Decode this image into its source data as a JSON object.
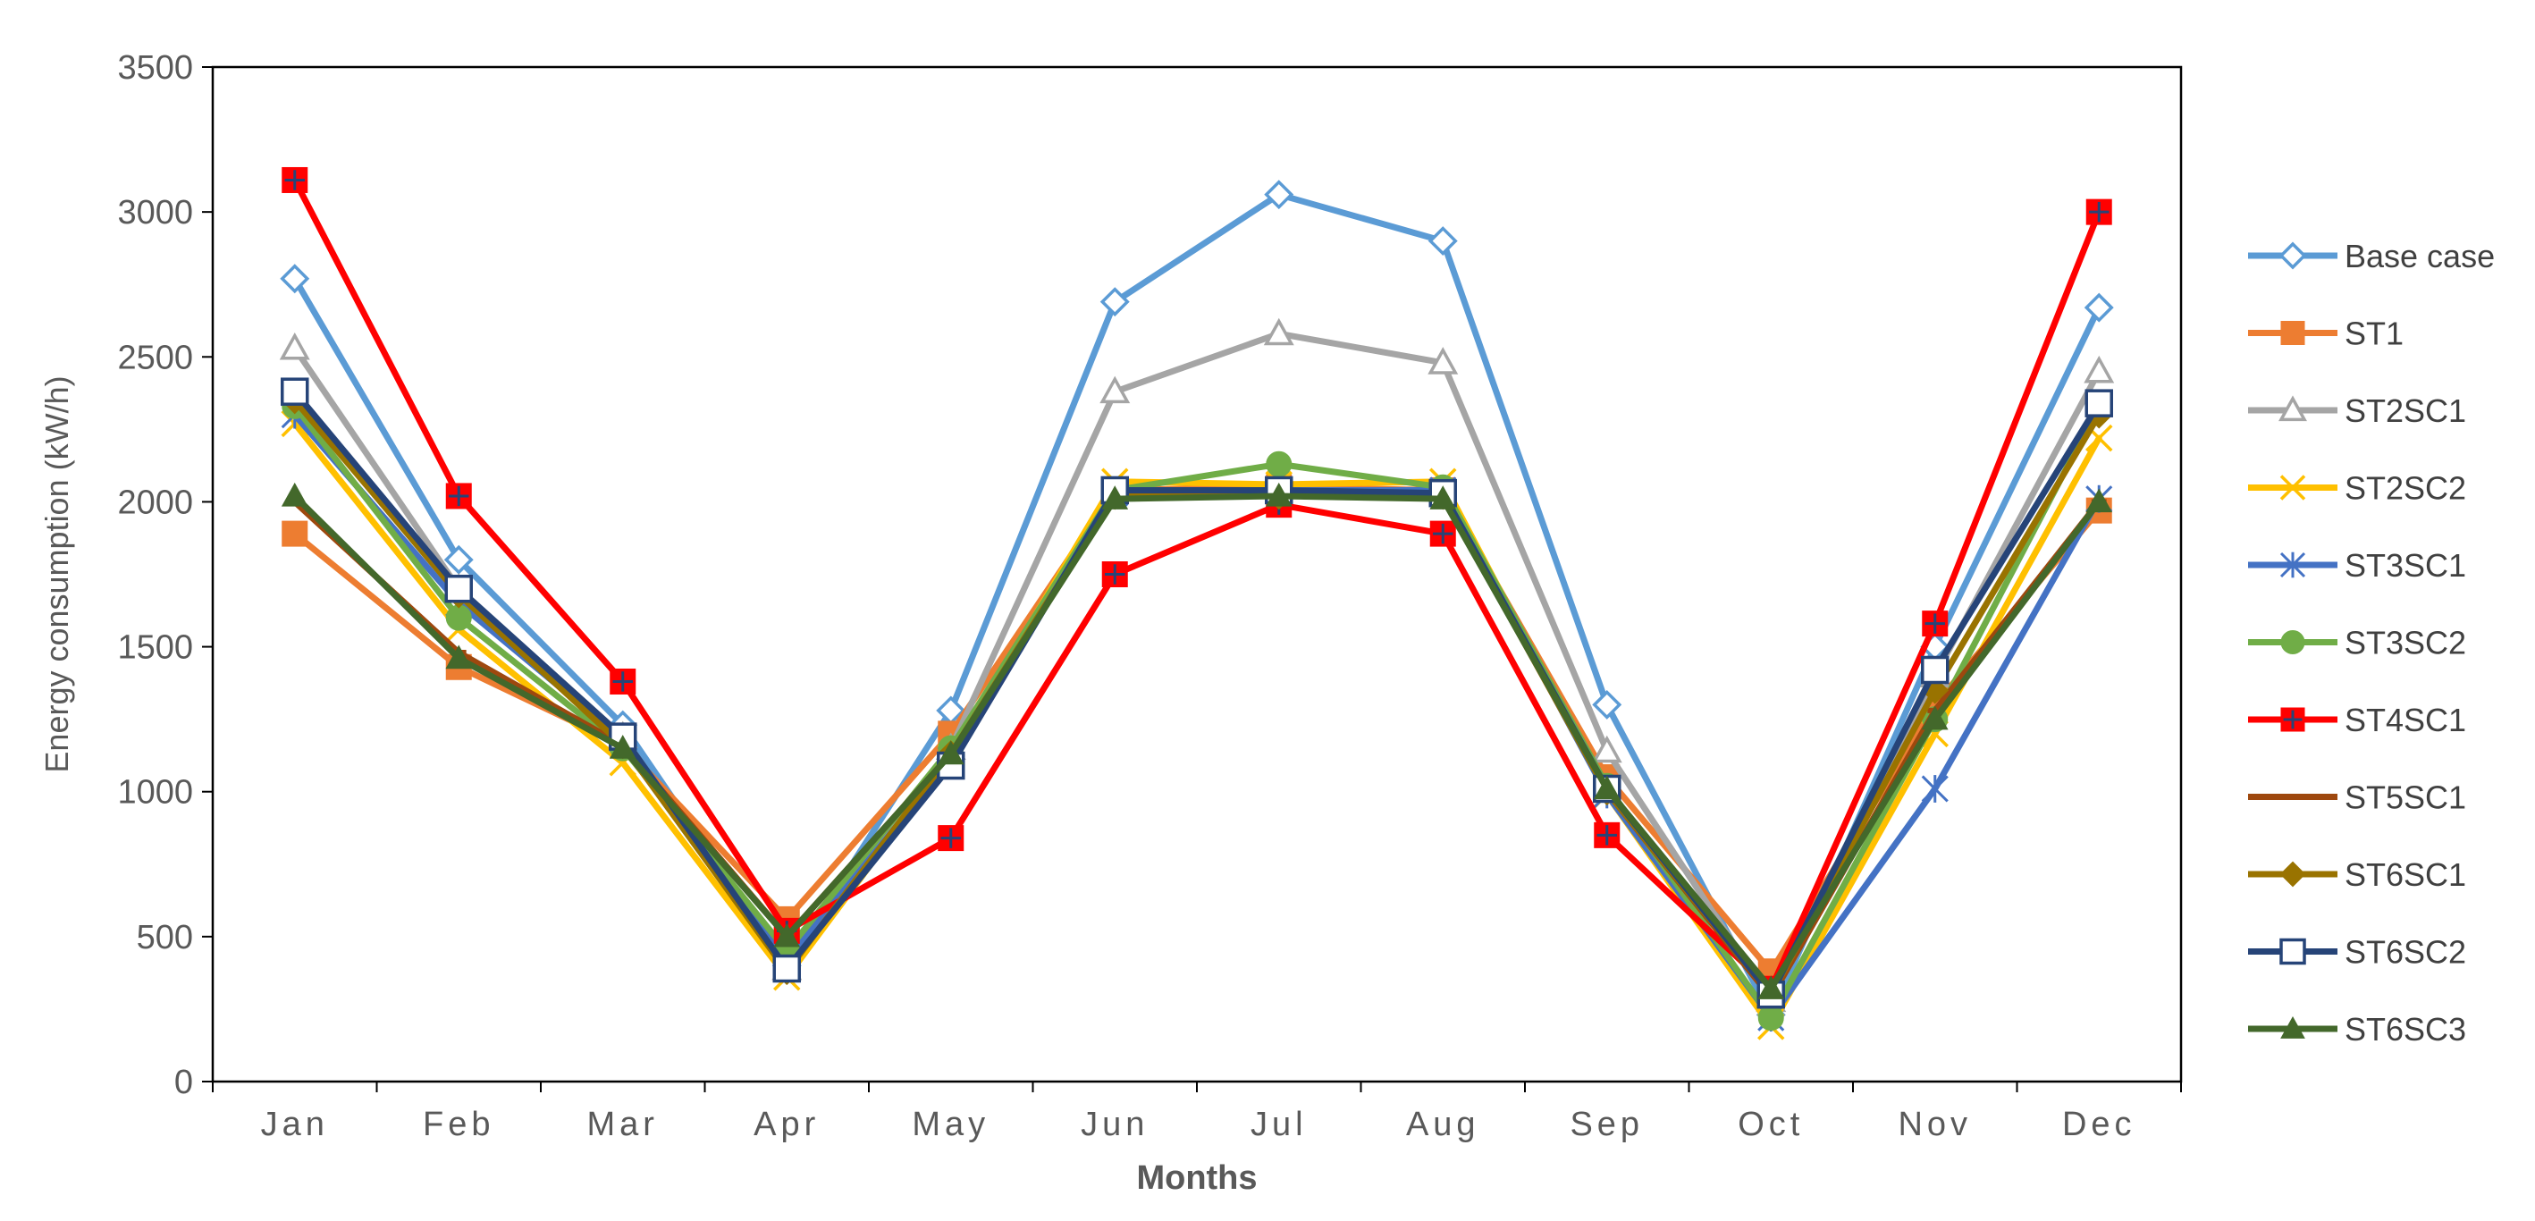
{
  "chart_data": {
    "type": "line",
    "title": "",
    "xlabel": "Months",
    "ylabel": "Energy consumption (kW/h)",
    "ylim": [
      0,
      3500
    ],
    "yticks": [
      0,
      500,
      1000,
      1500,
      2000,
      2500,
      3000,
      3500
    ],
    "grid": false,
    "legend_position": "right",
    "categories": [
      "Jan",
      "Feb",
      "Mar",
      "Apr",
      "May",
      "Jun",
      "Jul",
      "Aug",
      "Sep",
      "Oct",
      "Nov",
      "Dec"
    ],
    "series": [
      {
        "name": "Base case",
        "color": "#5B9BD5",
        "marker": "diamond-open",
        "values": [
          2770,
          1800,
          1230,
          400,
          1280,
          2690,
          3060,
          2900,
          1300,
          230,
          1500,
          2670
        ]
      },
      {
        "name": "ST1",
        "color": "#ED7D31",
        "marker": "square",
        "values": [
          1890,
          1430,
          1160,
          560,
          1200,
          2040,
          2050,
          2040,
          1050,
          380,
          1300,
          1970
        ]
      },
      {
        "name": "ST2SC1",
        "color": "#A5A5A5",
        "marker": "triangle-open",
        "values": [
          2530,
          1700,
          1190,
          390,
          1150,
          2380,
          2580,
          2480,
          1140,
          280,
          1400,
          2450
        ]
      },
      {
        "name": "ST2SC2",
        "color": "#FFC000",
        "marker": "x",
        "values": [
          2270,
          1560,
          1100,
          360,
          1120,
          2070,
          2060,
          2070,
          990,
          190,
          1200,
          2220
        ]
      },
      {
        "name": "ST3SC1",
        "color": "#4472C4",
        "marker": "asterisk",
        "values": [
          2300,
          1650,
          1180,
          420,
          1110,
          2030,
          2040,
          2040,
          990,
          220,
          1010,
          2010
        ]
      },
      {
        "name": "ST3SC2",
        "color": "#70AD47",
        "marker": "circle",
        "values": [
          2330,
          1600,
          1150,
          450,
          1150,
          2040,
          2130,
          2050,
          1020,
          220,
          1250,
          2330
        ]
      },
      {
        "name": "ST4SC1",
        "color": "#FF0000",
        "marker": "square-plus",
        "values": [
          3110,
          2020,
          1380,
          520,
          840,
          1750,
          1990,
          1890,
          850,
          320,
          1580,
          3000
        ]
      },
      {
        "name": "ST5SC1",
        "color": "#9E480E",
        "marker": "dash",
        "values": [
          2000,
          1480,
          1160,
          500,
          1130,
          2020,
          2020,
          2020,
          1000,
          290,
          1280,
          2000
        ]
      },
      {
        "name": "ST6SC1",
        "color": "#997300",
        "marker": "diamond",
        "values": [
          2350,
          1680,
          1160,
          380,
          1130,
          2020,
          2020,
          2020,
          1000,
          300,
          1350,
          2300
        ]
      },
      {
        "name": "ST6SC2",
        "color": "#264478",
        "marker": "square-open",
        "values": [
          2380,
          1700,
          1190,
          390,
          1090,
          2040,
          2040,
          2030,
          1010,
          300,
          1420,
          2340
        ]
      },
      {
        "name": "ST6SC3",
        "color": "#43682B",
        "marker": "triangle",
        "values": [
          2020,
          1460,
          1150,
          500,
          1130,
          2010,
          2020,
          2010,
          1010,
          320,
          1250,
          2000
        ]
      }
    ]
  }
}
